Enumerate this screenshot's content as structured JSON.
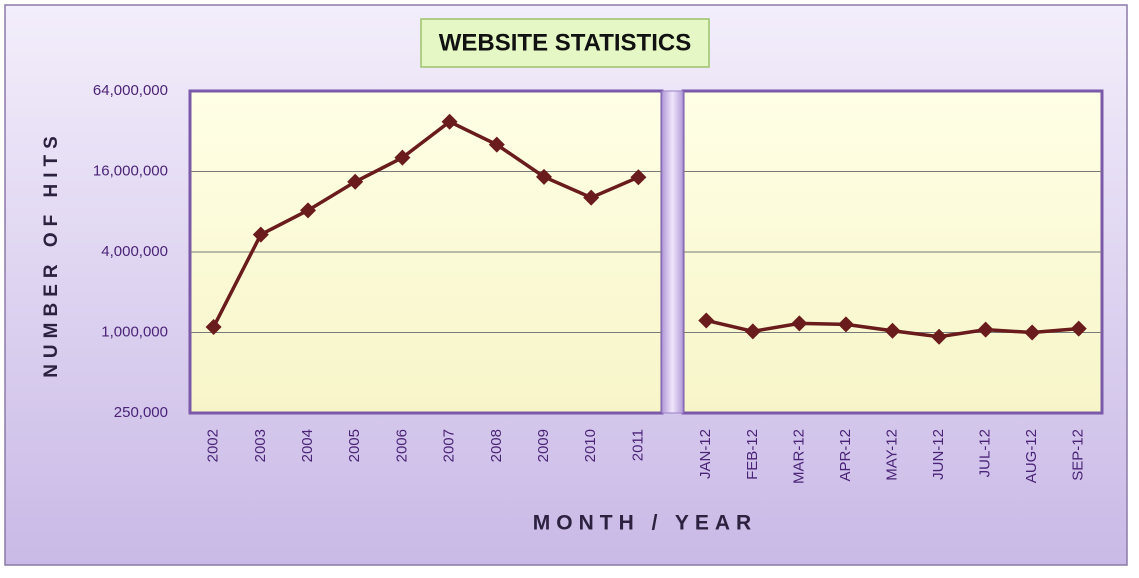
{
  "chart_data": [
    {
      "type": "line",
      "title": "WEBSITE STATISTICS",
      "y_label": "NUMBER OF HITS",
      "x_label": "MONTH / YEAR",
      "log_scale": true,
      "grid": true,
      "color": "#6a1b1b",
      "ylim": [
        250000,
        64000000
      ],
      "yticks": [
        {
          "value": 250000,
          "label": "250,000"
        },
        {
          "value": 1000000,
          "label": "1,000,000"
        },
        {
          "value": 4000000,
          "label": "4,000,000"
        },
        {
          "value": 16000000,
          "label": "16,000,000"
        },
        {
          "value": 64000000,
          "label": "64,000,000"
        }
      ],
      "categories": [
        "2002",
        "2003",
        "2004",
        "2005",
        "2006",
        "2007",
        "2008",
        "2009",
        "2010",
        "2011"
      ],
      "values": [
        1100000,
        5400000,
        8200000,
        13400000,
        20300000,
        37700000,
        25400000,
        14600000,
        10200000,
        14500000
      ]
    },
    {
      "type": "line",
      "log_scale": true,
      "grid": true,
      "color": "#6a1b1b",
      "ylim": [
        250000,
        64000000
      ],
      "categories": [
        "JAN-12",
        "FEB-12",
        "MAR-12",
        "APR-12",
        "MAY-12",
        "JUN-12",
        "JUL-12",
        "AUG-12",
        "SEP-12"
      ],
      "values": [
        1230000,
        1020000,
        1170000,
        1150000,
        1030000,
        930000,
        1050000,
        1000000,
        1070000
      ]
    }
  ]
}
